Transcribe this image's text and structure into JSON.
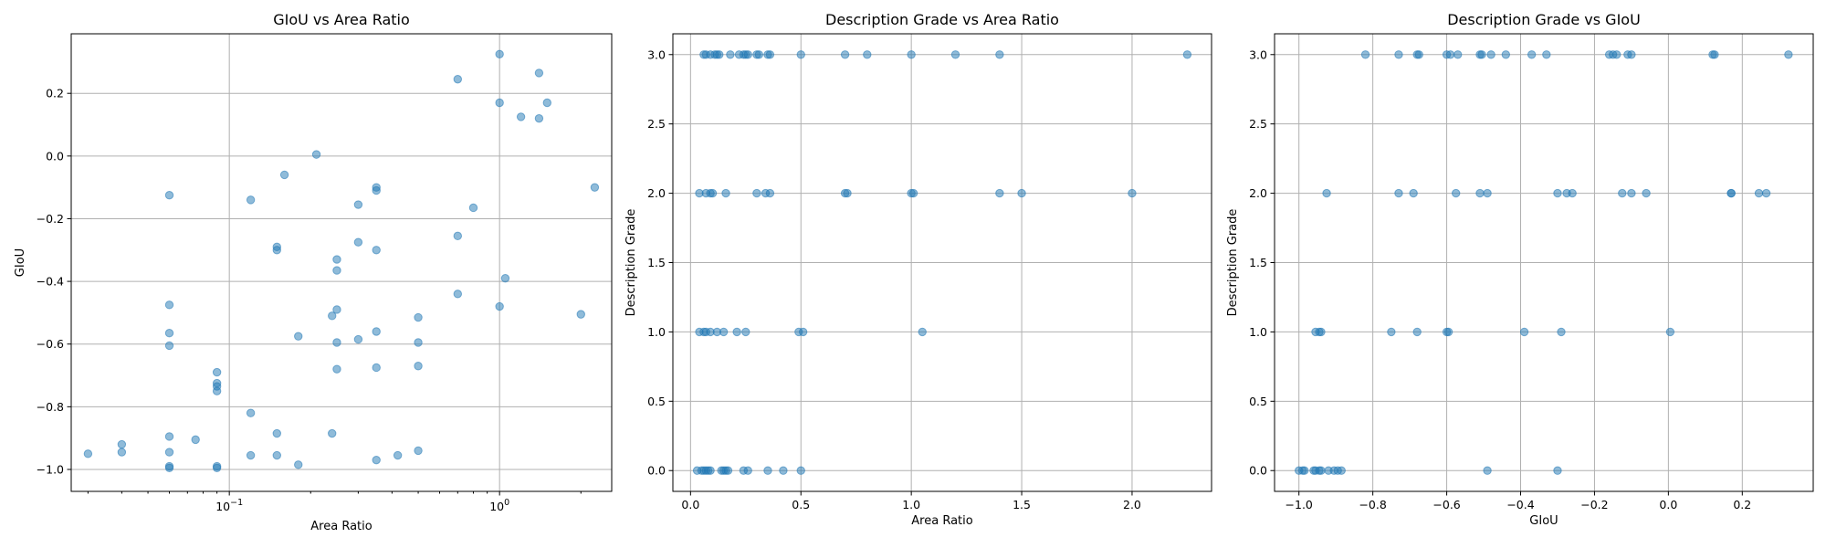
{
  "chart_data": [
    {
      "type": "scatter",
      "title": "GIoU vs Area Ratio",
      "xlabel": "Area Ratio",
      "ylabel": "GIoU",
      "xscale": "log",
      "xlim": [
        0.026,
        2.6
      ],
      "ylim": [
        -1.07,
        0.39
      ],
      "xticks": [
        {
          "v": 0.1,
          "base": "10",
          "exp": "−1"
        },
        {
          "v": 1,
          "base": "10",
          "exp": "0"
        }
      ],
      "yticks": [
        {
          "v": -1.0,
          "label": "−1.0"
        },
        {
          "v": -0.8,
          "label": "−0.8"
        },
        {
          "v": -0.6,
          "label": "−0.6"
        },
        {
          "v": -0.4,
          "label": "−0.4"
        },
        {
          "v": -0.2,
          "label": "−0.2"
        },
        {
          "v": 0.0,
          "label": "0.0"
        },
        {
          "v": 0.2,
          "label": "0.2"
        }
      ],
      "grid": true,
      "color": "#1f77b4",
      "points": [
        [
          0.03,
          -0.95
        ],
        [
          0.04,
          -0.92
        ],
        [
          0.04,
          -0.945
        ],
        [
          0.06,
          -0.125
        ],
        [
          0.06,
          -0.475
        ],
        [
          0.06,
          -0.565
        ],
        [
          0.06,
          -0.605
        ],
        [
          0.06,
          -0.895
        ],
        [
          0.06,
          -0.945
        ],
        [
          0.06,
          -0.99
        ],
        [
          0.06,
          -0.995
        ],
        [
          0.075,
          -0.905
        ],
        [
          0.09,
          -0.69
        ],
        [
          0.09,
          -0.725
        ],
        [
          0.09,
          -0.735
        ],
        [
          0.09,
          -0.75
        ],
        [
          0.09,
          -0.99
        ],
        [
          0.09,
          -0.995
        ],
        [
          0.12,
          -0.14
        ],
        [
          0.12,
          -0.82
        ],
        [
          0.12,
          -0.955
        ],
        [
          0.15,
          -0.29
        ],
        [
          0.15,
          -0.3
        ],
        [
          0.15,
          -0.885
        ],
        [
          0.15,
          -0.955
        ],
        [
          0.16,
          -0.06
        ],
        [
          0.18,
          -0.575
        ],
        [
          0.18,
          -0.985
        ],
        [
          0.21,
          0.005
        ],
        [
          0.24,
          -0.51
        ],
        [
          0.24,
          -0.885
        ],
        [
          0.25,
          -0.33
        ],
        [
          0.25,
          -0.365
        ],
        [
          0.25,
          -0.49
        ],
        [
          0.25,
          -0.595
        ],
        [
          0.25,
          -0.68
        ],
        [
          0.3,
          -0.155
        ],
        [
          0.3,
          -0.275
        ],
        [
          0.3,
          -0.585
        ],
        [
          0.35,
          -0.1
        ],
        [
          0.35,
          -0.11
        ],
        [
          0.35,
          -0.3
        ],
        [
          0.35,
          -0.56
        ],
        [
          0.35,
          -0.675
        ],
        [
          0.35,
          -0.97
        ],
        [
          0.42,
          -0.955
        ],
        [
          0.5,
          -0.515
        ],
        [
          0.5,
          -0.595
        ],
        [
          0.5,
          -0.67
        ],
        [
          0.5,
          -0.94
        ],
        [
          0.7,
          0.245
        ],
        [
          0.7,
          -0.255
        ],
        [
          0.7,
          -0.44
        ],
        [
          0.8,
          -0.165
        ],
        [
          1.0,
          0.325
        ],
        [
          1.0,
          0.17
        ],
        [
          1.0,
          -0.48
        ],
        [
          1.05,
          -0.39
        ],
        [
          1.2,
          0.125
        ],
        [
          1.4,
          0.265
        ],
        [
          1.4,
          0.12
        ],
        [
          1.5,
          0.17
        ],
        [
          2.0,
          -0.505
        ],
        [
          2.25,
          -0.1
        ]
      ]
    },
    {
      "type": "scatter",
      "title": "Description Grade vs Area Ratio",
      "xlabel": "Area Ratio",
      "ylabel": "Description Grade",
      "xscale": "linear",
      "xlim": [
        -0.08,
        2.36
      ],
      "ylim": [
        -0.15,
        3.15
      ],
      "xticks": [
        {
          "v": 0.0,
          "label": "0.0"
        },
        {
          "v": 0.5,
          "label": "0.5"
        },
        {
          "v": 1.0,
          "label": "1.0"
        },
        {
          "v": 1.5,
          "label": "1.5"
        },
        {
          "v": 2.0,
          "label": "2.0"
        }
      ],
      "yticks": [
        {
          "v": 0.0,
          "label": "0.0"
        },
        {
          "v": 0.5,
          "label": "0.5"
        },
        {
          "v": 1.0,
          "label": "1.0"
        },
        {
          "v": 1.5,
          "label": "1.5"
        },
        {
          "v": 2.0,
          "label": "2.0"
        },
        {
          "v": 2.5,
          "label": "2.5"
        },
        {
          "v": 3.0,
          "label": "3.0"
        }
      ],
      "grid": true,
      "color": "#1f77b4",
      "points": [
        [
          0.06,
          3
        ],
        [
          0.07,
          3
        ],
        [
          0.09,
          3
        ],
        [
          0.11,
          3
        ],
        [
          0.12,
          3
        ],
        [
          0.13,
          3
        ],
        [
          0.18,
          3
        ],
        [
          0.22,
          3
        ],
        [
          0.24,
          3
        ],
        [
          0.25,
          3
        ],
        [
          0.26,
          3
        ],
        [
          0.3,
          3
        ],
        [
          0.31,
          3
        ],
        [
          0.35,
          3
        ],
        [
          0.36,
          3
        ],
        [
          0.5,
          3
        ],
        [
          0.7,
          3
        ],
        [
          0.8,
          3
        ],
        [
          1.0,
          3
        ],
        [
          1.2,
          3
        ],
        [
          1.4,
          3
        ],
        [
          2.25,
          3
        ],
        [
          0.04,
          2
        ],
        [
          0.07,
          2
        ],
        [
          0.09,
          2
        ],
        [
          0.1,
          2
        ],
        [
          0.16,
          2
        ],
        [
          0.3,
          2
        ],
        [
          0.34,
          2
        ],
        [
          0.36,
          2
        ],
        [
          0.7,
          2
        ],
        [
          0.71,
          2
        ],
        [
          1.0,
          2
        ],
        [
          1.01,
          2
        ],
        [
          1.4,
          2
        ],
        [
          1.5,
          2
        ],
        [
          2.0,
          2
        ],
        [
          0.04,
          1
        ],
        [
          0.06,
          1
        ],
        [
          0.07,
          1
        ],
        [
          0.09,
          1
        ],
        [
          0.12,
          1
        ],
        [
          0.15,
          1
        ],
        [
          0.21,
          1
        ],
        [
          0.25,
          1
        ],
        [
          0.49,
          1
        ],
        [
          0.51,
          1
        ],
        [
          1.05,
          1
        ],
        [
          0.03,
          0
        ],
        [
          0.05,
          0
        ],
        [
          0.06,
          0
        ],
        [
          0.07,
          0
        ],
        [
          0.08,
          0
        ],
        [
          0.09,
          0
        ],
        [
          0.14,
          0
        ],
        [
          0.15,
          0
        ],
        [
          0.16,
          0
        ],
        [
          0.17,
          0
        ],
        [
          0.24,
          0
        ],
        [
          0.26,
          0
        ],
        [
          0.35,
          0
        ],
        [
          0.42,
          0
        ],
        [
          0.5,
          0
        ]
      ]
    },
    {
      "type": "scatter",
      "title": "Description Grade vs GIoU",
      "xlabel": "GIoU",
      "ylabel": "Description Grade",
      "xscale": "linear",
      "xlim": [
        -1.066,
        0.392
      ],
      "ylim": [
        -0.15,
        3.15
      ],
      "xticks": [
        {
          "v": -1.0,
          "label": "−1.0"
        },
        {
          "v": -0.8,
          "label": "−0.8"
        },
        {
          "v": -0.6,
          "label": "−0.6"
        },
        {
          "v": -0.4,
          "label": "−0.4"
        },
        {
          "v": -0.2,
          "label": "−0.2"
        },
        {
          "v": 0.0,
          "label": "0.0"
        },
        {
          "v": 0.2,
          "label": "0.2"
        }
      ],
      "yticks": [
        {
          "v": 0.0,
          "label": "0.0"
        },
        {
          "v": 0.5,
          "label": "0.5"
        },
        {
          "v": 1.0,
          "label": "1.0"
        },
        {
          "v": 1.5,
          "label": "1.5"
        },
        {
          "v": 2.0,
          "label": "2.0"
        },
        {
          "v": 2.5,
          "label": "2.5"
        },
        {
          "v": 3.0,
          "label": "3.0"
        }
      ],
      "grid": true,
      "color": "#1f77b4",
      "points": [
        [
          -0.82,
          3
        ],
        [
          -0.73,
          3
        ],
        [
          -0.68,
          3
        ],
        [
          -0.675,
          3
        ],
        [
          -0.6,
          3
        ],
        [
          -0.59,
          3
        ],
        [
          -0.57,
          3
        ],
        [
          -0.51,
          3
        ],
        [
          -0.505,
          3
        ],
        [
          -0.48,
          3
        ],
        [
          -0.44,
          3
        ],
        [
          -0.37,
          3
        ],
        [
          -0.33,
          3
        ],
        [
          -0.16,
          3
        ],
        [
          -0.15,
          3
        ],
        [
          -0.14,
          3
        ],
        [
          -0.11,
          3
        ],
        [
          -0.1,
          3
        ],
        [
          0.12,
          3
        ],
        [
          0.125,
          3
        ],
        [
          0.325,
          3
        ],
        [
          -0.925,
          2
        ],
        [
          -0.73,
          2
        ],
        [
          -0.69,
          2
        ],
        [
          -0.575,
          2
        ],
        [
          -0.51,
          2
        ],
        [
          -0.49,
          2
        ],
        [
          -0.3,
          2
        ],
        [
          -0.275,
          2
        ],
        [
          -0.26,
          2
        ],
        [
          -0.125,
          2
        ],
        [
          -0.1,
          2
        ],
        [
          -0.06,
          2
        ],
        [
          0.17,
          2
        ],
        [
          0.17,
          2
        ],
        [
          0.245,
          2
        ],
        [
          0.265,
          2
        ],
        [
          -0.955,
          1
        ],
        [
          -0.945,
          1
        ],
        [
          -0.94,
          1
        ],
        [
          -0.75,
          1
        ],
        [
          -0.68,
          1
        ],
        [
          -0.6,
          1
        ],
        [
          -0.595,
          1
        ],
        [
          -0.39,
          1
        ],
        [
          -0.29,
          1
        ],
        [
          0.005,
          1
        ],
        [
          -1.0,
          0
        ],
        [
          -0.99,
          0
        ],
        [
          -0.985,
          0
        ],
        [
          -0.96,
          0
        ],
        [
          -0.955,
          0
        ],
        [
          -0.945,
          0
        ],
        [
          -0.94,
          0
        ],
        [
          -0.92,
          0
        ],
        [
          -0.905,
          0
        ],
        [
          -0.895,
          0
        ],
        [
          -0.885,
          0
        ],
        [
          -0.49,
          0
        ],
        [
          -0.3,
          0
        ]
      ]
    }
  ]
}
